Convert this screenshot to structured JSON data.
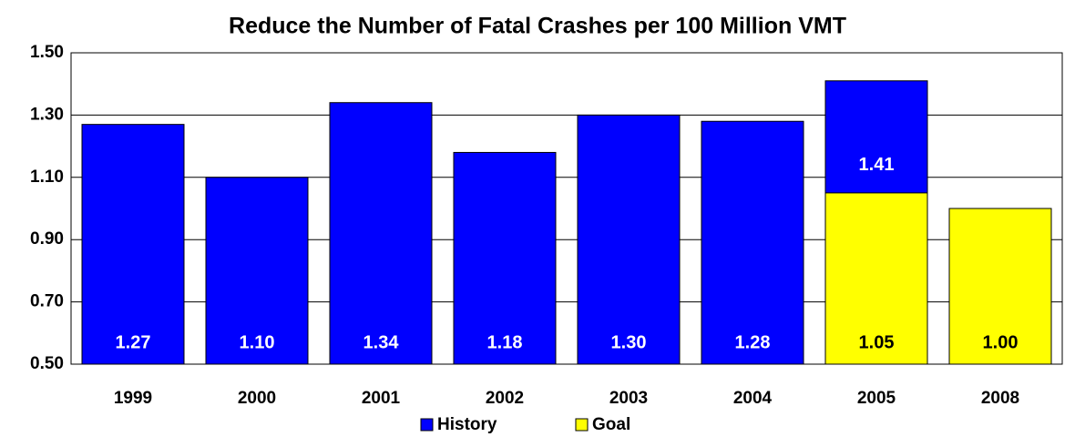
{
  "chart_data": {
    "type": "bar",
    "title": "Reduce the Number of Fatal Crashes per 100 Million VMT",
    "categories": [
      "1999",
      "2000",
      "2001",
      "2002",
      "2003",
      "2004",
      "2005",
      "2008"
    ],
    "series": [
      {
        "name": "History",
        "color": "#0000ff",
        "values": [
          1.27,
          1.1,
          1.34,
          1.18,
          1.3,
          1.28,
          1.41,
          null
        ],
        "value_labels": [
          "1.27",
          "1.10",
          "1.34",
          "1.18",
          "1.30",
          "1.28",
          "1.41",
          null
        ]
      },
      {
        "name": "Goal",
        "color": "#ffff00",
        "values": [
          null,
          null,
          null,
          null,
          null,
          null,
          1.05,
          1.0
        ],
        "value_labels": [
          null,
          null,
          null,
          null,
          null,
          null,
          "1.05",
          "1.00"
        ]
      }
    ],
    "ylim": [
      0.5,
      1.5
    ],
    "yticks": [
      {
        "value": 0.5,
        "label": "0.50"
      },
      {
        "value": 0.7,
        "label": "0.70"
      },
      {
        "value": 0.9,
        "label": "0.90"
      },
      {
        "value": 1.1,
        "label": "1.10"
      },
      {
        "value": 1.3,
        "label": "1.30"
      },
      {
        "value": 1.5,
        "label": "1.50"
      }
    ],
    "grid": true,
    "legend": "bottom"
  }
}
